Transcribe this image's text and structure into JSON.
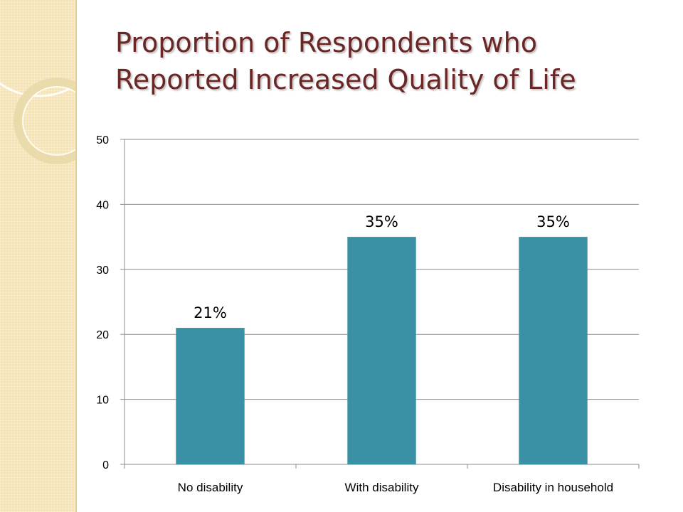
{
  "slide": {
    "title_line1": "Proportion of Respondents who",
    "title_line2": "Reported Increased Quality of Life"
  },
  "chart_data": {
    "type": "bar",
    "categories": [
      "No disability",
      "With disability",
      "Disability in household"
    ],
    "values": [
      21,
      35,
      35
    ],
    "data_labels": [
      "21%",
      "35%",
      "35%"
    ],
    "y_ticks": [
      "0",
      "10",
      "20",
      "30",
      "40",
      "50"
    ],
    "ylim": [
      0,
      50
    ],
    "grid": true,
    "legend": "none",
    "bar_color": "#3a91a5",
    "title": "",
    "xlabel": "",
    "ylabel": ""
  },
  "colors": {
    "title": "#6b2626",
    "side_strip": "#f5e3b4",
    "gridline": "#8c8c8c"
  }
}
